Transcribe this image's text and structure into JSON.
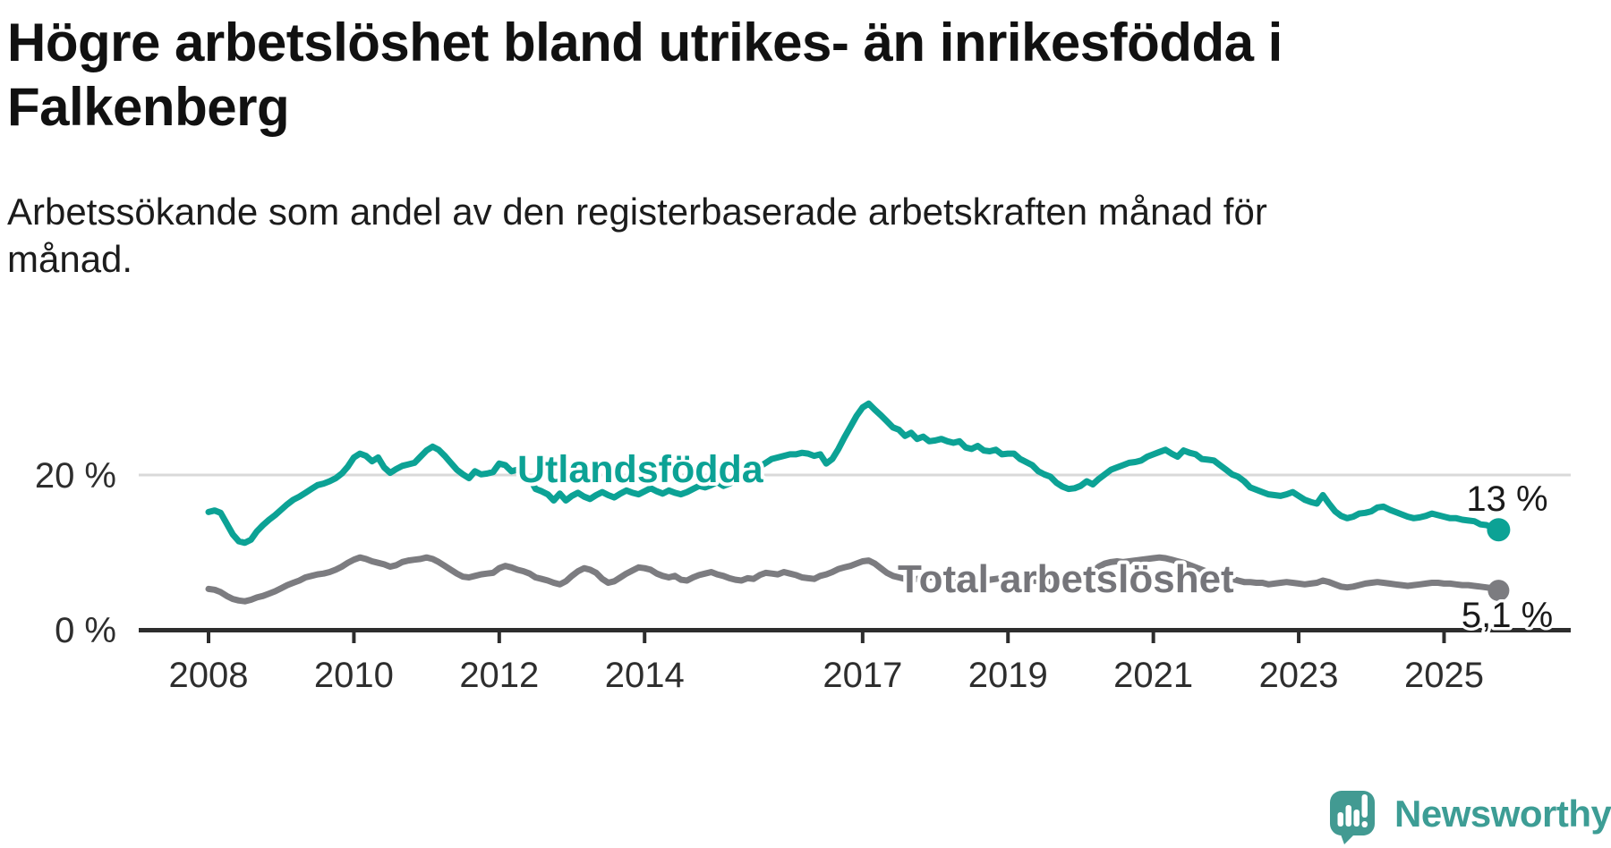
{
  "header": {
    "title_lines": [
      "Högre arbetslöshet bland utrikes- än inrikesfödda i",
      "Falkenberg"
    ],
    "subtitle_lines": [
      "Arbetssökande som andel av den registerbaserade arbetskraften månad för",
      "månad."
    ]
  },
  "chart": {
    "y_axis_labels": [
      {
        "text": "20 %",
        "value": 20
      },
      {
        "text": "0 %",
        "value": 0
      }
    ],
    "x_tick_labels": [
      "2008",
      "2010",
      "2012",
      "2014",
      "2017",
      "2019",
      "2021",
      "2023",
      "2025"
    ],
    "series_labels": {
      "foreign": "Utlandsfödda",
      "total": "Total arbetslöshet"
    },
    "end_labels": {
      "foreign": "13 %",
      "total": "5,1 %"
    }
  },
  "colors": {
    "teal": "#0ca295",
    "gray": "#7c7c80",
    "gray_label": "#75757a",
    "axis": "#2d2d2d",
    "grid": "#d9d9d9",
    "text": "#1a1a1a",
    "logo": "#3d9d95"
  },
  "footer": {
    "brand": "Newsworthy"
  },
  "chart_data": {
    "type": "line",
    "title": "Högre arbetslöshet bland utrikes- än inrikesfödda i Falkenberg",
    "subtitle": "Arbetssökande som andel av den registerbaserade arbetskraften månad för månad.",
    "unit": "%",
    "frequency": "monthly",
    "x_start": "2008-01",
    "x_end": "2025-10",
    "x_tick_years": [
      2008,
      2010,
      2012,
      2014,
      2017,
      2019,
      2021,
      2023,
      2025
    ],
    "y_ticks": [
      0,
      20
    ],
    "ylim": [
      0,
      30
    ],
    "grid": "single horizontal gridline at 20 %",
    "legend": "inline series labels on chart",
    "series": [
      {
        "name": "Utlandsfödda",
        "color": "#0ca295",
        "end_label": "13 %",
        "last_value": 13.0,
        "values": [
          15.3,
          15.5,
          15.2,
          13.8,
          12.4,
          11.5,
          11.3,
          11.7,
          12.8,
          13.6,
          14.3,
          14.9,
          15.6,
          16.3,
          16.9,
          17.3,
          17.8,
          18.3,
          18.8,
          19.0,
          19.3,
          19.7,
          20.3,
          21.2,
          22.4,
          22.9,
          22.6,
          21.9,
          22.4,
          21.1,
          20.4,
          20.9,
          21.3,
          21.5,
          21.7,
          22.5,
          23.3,
          23.8,
          23.4,
          22.6,
          21.7,
          20.8,
          20.2,
          19.7,
          20.6,
          20.2,
          20.3,
          20.5,
          21.6,
          21.4,
          20.6,
          20.8,
          20.2,
          19.7,
          18.3,
          18.0,
          17.6,
          16.8,
          17.7,
          16.8,
          17.4,
          17.8,
          17.3,
          17.0,
          17.5,
          17.9,
          17.5,
          17.2,
          17.7,
          18.1,
          17.8,
          17.6,
          18.0,
          18.4,
          18.0,
          17.7,
          18.1,
          17.8,
          17.6,
          17.9,
          18.3,
          18.7,
          18.5,
          18.8,
          19.2,
          18.7,
          19.0,
          19.4,
          19.8,
          20.3,
          20.8,
          21.2,
          21.7,
          22.2,
          22.4,
          22.6,
          22.8,
          22.8,
          23.0,
          22.9,
          22.6,
          22.8,
          21.6,
          22.2,
          23.5,
          25.0,
          26.4,
          27.8,
          28.9,
          29.4,
          28.6,
          27.9,
          27.1,
          26.3,
          26.0,
          25.2,
          25.6,
          24.8,
          25.1,
          24.5,
          24.6,
          24.8,
          24.5,
          24.3,
          24.5,
          23.7,
          23.5,
          23.9,
          23.3,
          23.2,
          23.4,
          22.8,
          22.9,
          22.9,
          22.2,
          21.8,
          21.4,
          20.6,
          20.2,
          19.9,
          19.1,
          18.6,
          18.3,
          18.4,
          18.7,
          19.3,
          18.9,
          19.6,
          20.2,
          20.8,
          21.1,
          21.4,
          21.7,
          21.8,
          22.0,
          22.5,
          22.8,
          23.1,
          23.4,
          22.9,
          22.5,
          23.3,
          23.0,
          22.8,
          22.2,
          22.1,
          22.0,
          21.4,
          20.8,
          20.2,
          19.9,
          19.3,
          18.5,
          18.2,
          17.9,
          17.6,
          17.5,
          17.4,
          17.6,
          17.9,
          17.4,
          16.9,
          16.6,
          16.4,
          17.5,
          16.4,
          15.4,
          14.8,
          14.5,
          14.7,
          15.1,
          15.2,
          15.4,
          15.9,
          16.0,
          15.6,
          15.3,
          15.0,
          14.7,
          14.5,
          14.6,
          14.8,
          15.1,
          14.9,
          14.7,
          14.5,
          14.5,
          14.3,
          14.2,
          14.1,
          13.7,
          13.6,
          13.3,
          13.0
        ]
      },
      {
        "name": "Total arbetslöshet",
        "color": "#7c7c80",
        "end_label": "5,1 %",
        "last_value": 5.1,
        "values": [
          5.3,
          5.2,
          4.9,
          4.4,
          4.0,
          3.8,
          3.7,
          3.9,
          4.2,
          4.4,
          4.7,
          5.0,
          5.4,
          5.8,
          6.1,
          6.4,
          6.8,
          7.0,
          7.2,
          7.3,
          7.5,
          7.8,
          8.2,
          8.7,
          9.1,
          9.4,
          9.2,
          8.9,
          8.7,
          8.5,
          8.2,
          8.4,
          8.8,
          9.0,
          9.1,
          9.2,
          9.4,
          9.2,
          8.8,
          8.3,
          7.8,
          7.3,
          6.9,
          6.8,
          7.0,
          7.2,
          7.3,
          7.4,
          8.0,
          8.3,
          8.1,
          7.8,
          7.6,
          7.3,
          6.8,
          6.6,
          6.4,
          6.1,
          5.9,
          6.3,
          7.0,
          7.6,
          8.0,
          7.8,
          7.4,
          6.6,
          6.1,
          6.3,
          6.8,
          7.3,
          7.7,
          8.1,
          8.0,
          7.8,
          7.3,
          7.0,
          6.8,
          7.0,
          6.5,
          6.4,
          6.8,
          7.1,
          7.3,
          7.5,
          7.2,
          7.0,
          6.7,
          6.5,
          6.4,
          6.7,
          6.6,
          7.1,
          7.4,
          7.3,
          7.2,
          7.5,
          7.3,
          7.1,
          6.8,
          6.7,
          6.6,
          7.0,
          7.2,
          7.5,
          7.9,
          8.1,
          8.3,
          8.6,
          8.9,
          9.0,
          8.6,
          8.0,
          7.4,
          7.0,
          6.8,
          6.6,
          6.5,
          6.6,
          6.7,
          6.8,
          6.8,
          6.9,
          6.8,
          6.7,
          6.6,
          6.5,
          6.3,
          6.3,
          6.4,
          6.5,
          6.6,
          6.7,
          6.7,
          6.7,
          6.6,
          6.5,
          6.4,
          6.3,
          6.4,
          6.3,
          6.3,
          6.4,
          6.5,
          6.7,
          6.9,
          7.1,
          7.5,
          8.2,
          8.6,
          8.8,
          8.9,
          8.8,
          8.9,
          9.0,
          9.1,
          9.2,
          9.3,
          9.4,
          9.3,
          9.1,
          8.9,
          8.7,
          8.4,
          8.1,
          7.8,
          7.5,
          7.2,
          7.0,
          6.8,
          6.6,
          6.4,
          6.2,
          6.2,
          6.1,
          6.1,
          5.9,
          6.0,
          6.1,
          6.2,
          6.1,
          6.0,
          5.9,
          6.0,
          6.1,
          6.4,
          6.2,
          5.9,
          5.6,
          5.5,
          5.6,
          5.8,
          6.0,
          6.1,
          6.2,
          6.1,
          6.0,
          5.9,
          5.8,
          5.7,
          5.8,
          5.9,
          6.0,
          6.1,
          6.1,
          6.0,
          6.0,
          5.9,
          5.8,
          5.8,
          5.7,
          5.6,
          5.5,
          5.4,
          5.1
        ]
      }
    ]
  }
}
